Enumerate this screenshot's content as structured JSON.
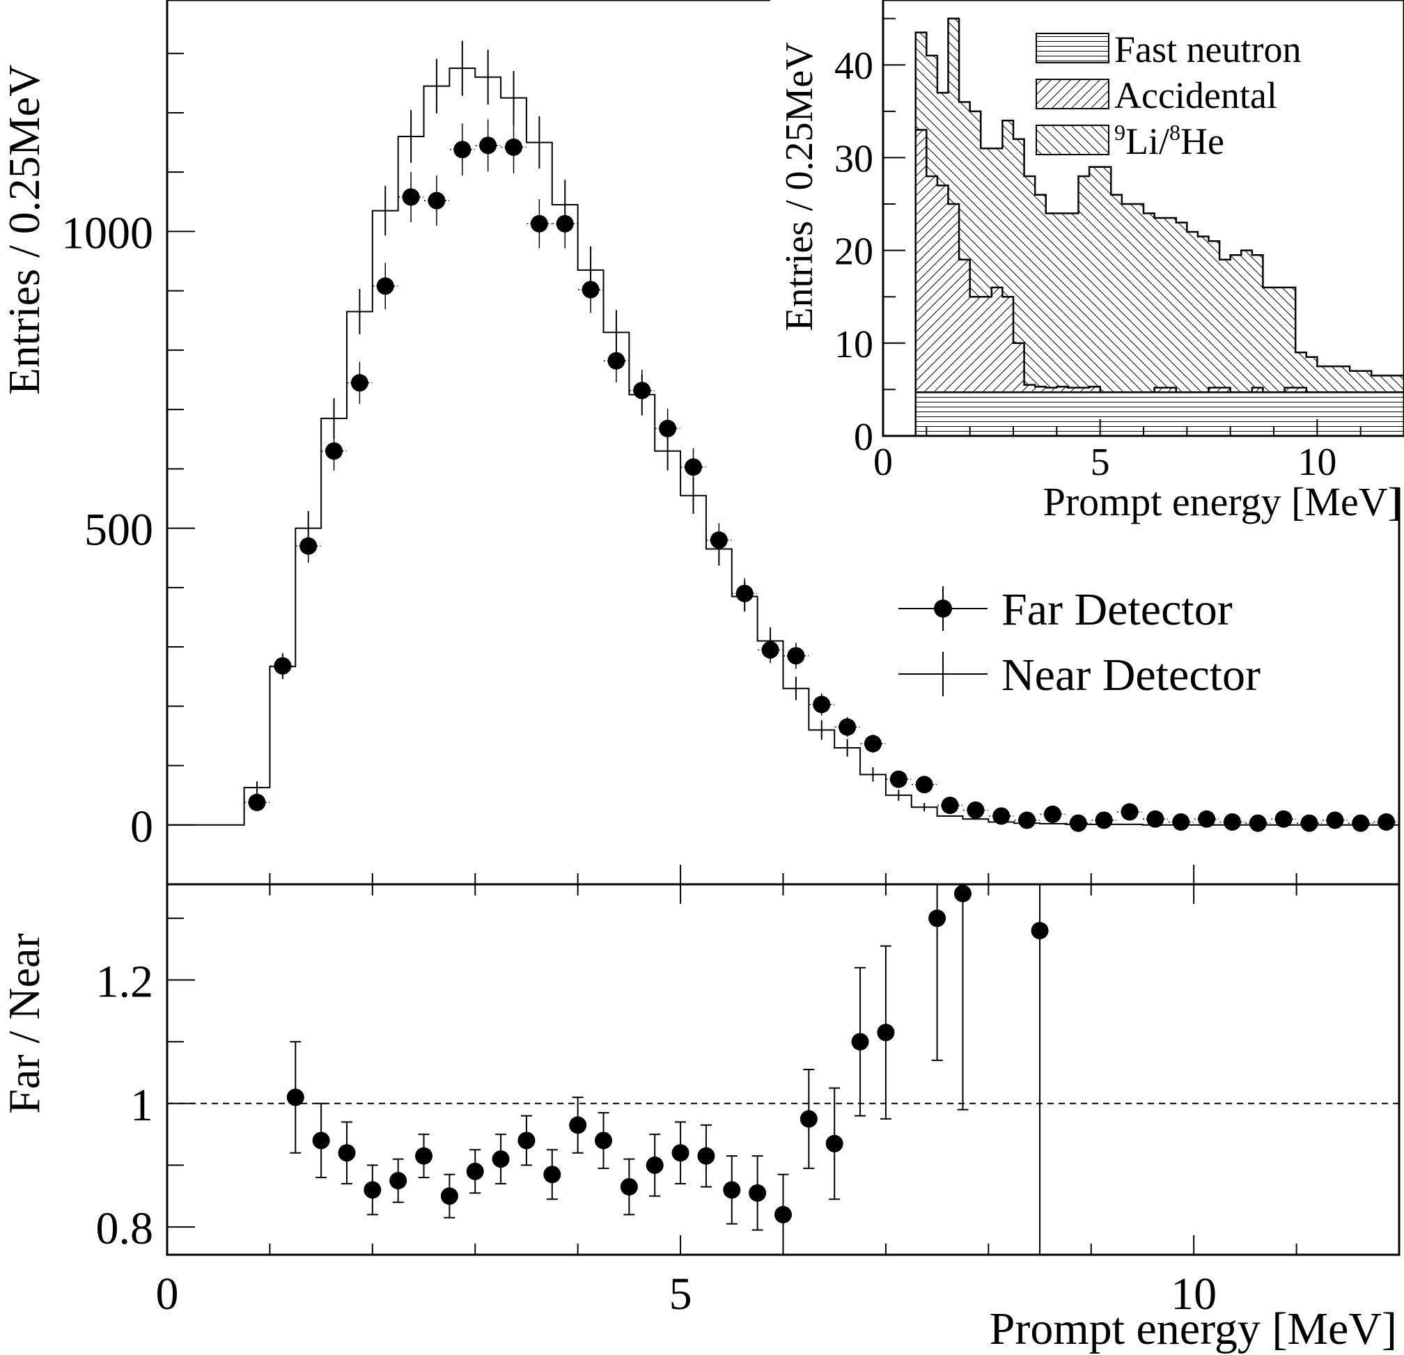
{
  "chart_data": [
    {
      "id": "main",
      "type": "histogram",
      "ylabel": "Entries / 0.25MeV",
      "xlim": [
        0,
        12
      ],
      "ylim": [
        -100,
        1390
      ],
      "x_ticks": [
        "0",
        "5",
        "10"
      ],
      "y_ticks": [
        "0",
        "500",
        "1000"
      ],
      "legend": {
        "position": "right-middle",
        "entries": [
          "Far Detector",
          "Near Detector"
        ]
      },
      "bin_width": 0.25,
      "series": [
        {
          "name": "Near Detector",
          "style": "step-with-errorbars",
          "bin_start": 0.75,
          "values": [
            63,
            267,
            500,
            685,
            865,
            1035,
            1160,
            1245,
            1275,
            1260,
            1225,
            1150,
            1045,
            935,
            830,
            725,
            630,
            555,
            465,
            385,
            310,
            230,
            160,
            130,
            85,
            50,
            30,
            15,
            10,
            5,
            3,
            2,
            1,
            1,
            1,
            0,
            0,
            0,
            0,
            0,
            0,
            0,
            0,
            0,
            0
          ]
        },
        {
          "name": "Far Detector",
          "style": "markers-with-errorbars",
          "x": [
            0.875,
            1.125,
            1.375,
            1.625,
            1.875,
            2.125,
            2.375,
            2.625,
            2.875,
            3.125,
            3.375,
            3.625,
            3.875,
            4.125,
            4.375,
            4.625,
            4.875,
            5.125,
            5.375,
            5.625,
            5.875,
            6.125,
            6.375,
            6.625,
            6.875,
            7.125,
            7.375,
            7.625,
            7.875,
            8.125,
            8.375,
            8.625,
            8.875,
            9.125,
            9.375,
            9.625,
            9.875,
            10.125,
            10.375,
            10.625,
            10.875,
            11.125,
            11.375,
            11.625,
            11.875
          ],
          "values": [
            38,
            268,
            470,
            630,
            745,
            908,
            1058,
            1052,
            1138,
            1145,
            1142,
            1013,
            1013,
            902,
            782,
            732,
            668,
            603,
            480,
            390,
            295,
            285,
            203,
            165,
            137,
            77,
            68,
            33,
            25,
            15,
            8,
            18,
            3,
            8,
            22,
            10,
            5,
            10,
            5,
            3,
            10,
            3,
            8,
            3,
            5
          ]
        }
      ]
    },
    {
      "id": "ratio",
      "type": "scatter",
      "xlabel": "Prompt energy [MeV]",
      "ylabel": "Far / Near",
      "xlim": [
        0,
        12
      ],
      "ylim": [
        0.755,
        1.355
      ],
      "x_ticks": [
        "0",
        "5",
        "10"
      ],
      "y_ticks": [
        "0.8",
        "1",
        "1.2"
      ],
      "reference_line": 1,
      "x": [
        1.25,
        1.5,
        1.75,
        2.0,
        2.25,
        2.5,
        2.75,
        3.0,
        3.25,
        3.5,
        3.75,
        4.0,
        4.25,
        4.5,
        4.75,
        5.0,
        5.25,
        5.5,
        5.75,
        6.0,
        6.25,
        6.5,
        6.75,
        7.0,
        7.5,
        7.75,
        8.5
      ],
      "values": [
        1.01,
        0.94,
        0.92,
        0.86,
        0.875,
        0.915,
        0.85,
        0.89,
        0.91,
        0.94,
        0.885,
        0.965,
        0.94,
        0.865,
        0.9,
        0.92,
        0.915,
        0.86,
        0.855,
        0.82,
        0.975,
        0.935,
        1.1,
        1.115,
        1.3,
        1.34,
        1.28
      ],
      "errors": [
        0.09,
        0.06,
        0.05,
        0.04,
        0.035,
        0.035,
        0.035,
        0.035,
        0.04,
        0.04,
        0.04,
        0.045,
        0.045,
        0.045,
        0.05,
        0.05,
        0.05,
        0.055,
        0.06,
        0.065,
        0.08,
        0.09,
        0.12,
        0.14,
        0.23,
        0.35,
        0.6
      ]
    },
    {
      "id": "inset",
      "type": "stacked-histogram",
      "xlabel": "Prompt energy [MeV]",
      "ylabel": "Entries / 0.25MeV",
      "xlim": [
        0,
        12
      ],
      "ylim": [
        0,
        47
      ],
      "x_ticks": [
        "0",
        "5",
        "10"
      ],
      "y_ticks": [
        "0",
        "10",
        "20",
        "30",
        "40"
      ],
      "legend": {
        "position": "top-right",
        "entries": [
          "Fast neutron",
          "Accidental",
          "Li/He"
        ]
      },
      "bin_width": 0.25,
      "bin_start": 0.75,
      "series": [
        {
          "name": "Fast neutron",
          "pattern": "horizontal",
          "cumulative": [
            4.7,
            4.7,
            4.7,
            4.7,
            4.7,
            4.7,
            4.7,
            4.7,
            4.7,
            4.7,
            4.7,
            4.7,
            4.7,
            4.7,
            4.7,
            4.7,
            4.7,
            4.7,
            4.7,
            4.7,
            4.7,
            4.7,
            4.7,
            4.7,
            4.7,
            4.7,
            4.7,
            4.7,
            4.7,
            4.7,
            4.7,
            4.7,
            4.7,
            4.7,
            4.7,
            4.7,
            4.7,
            4.7,
            4.7,
            4.7,
            4.7,
            4.7,
            4.7,
            4.7,
            4.7,
            4.7
          ]
        },
        {
          "name": "Accidental",
          "pattern": "diagonal-up",
          "cumulative": [
            33,
            28,
            27,
            25,
            19,
            15,
            15,
            16,
            15,
            10,
            5.5,
            5.3,
            5.2,
            5.3,
            5.2,
            5.2,
            5.3,
            4.7,
            4.7,
            4.7,
            4.7,
            4.7,
            5.2,
            5.2,
            4.7,
            4.7,
            4.7,
            5.2,
            5.2,
            4.7,
            4.7,
            5.2,
            4.7,
            4.7,
            5.2,
            5.2,
            4.7,
            4.7,
            4.7,
            4.7,
            4.7,
            4.7,
            4.7,
            4.7,
            4.7,
            4.7
          ]
        },
        {
          "name": "Li/He",
          "pattern": "diagonal-down",
          "cumulative": [
            43.5,
            41,
            37,
            45,
            36,
            35,
            31,
            31,
            34,
            32,
            28,
            26,
            24,
            24,
            24,
            28,
            29,
            29,
            26,
            25,
            25,
            24,
            23.5,
            23.5,
            23,
            22,
            21.5,
            21,
            19,
            19.5,
            20,
            19.5,
            16,
            16,
            16,
            9,
            8.5,
            7.5,
            7.5,
            7.5,
            7,
            7,
            6.5,
            6.5,
            6.5,
            4.7
          ]
        }
      ]
    }
  ],
  "inset_legend_isotopes": {
    "li_mass": "9",
    "li": "Li/",
    "he_mass": "8",
    "he": "He"
  }
}
